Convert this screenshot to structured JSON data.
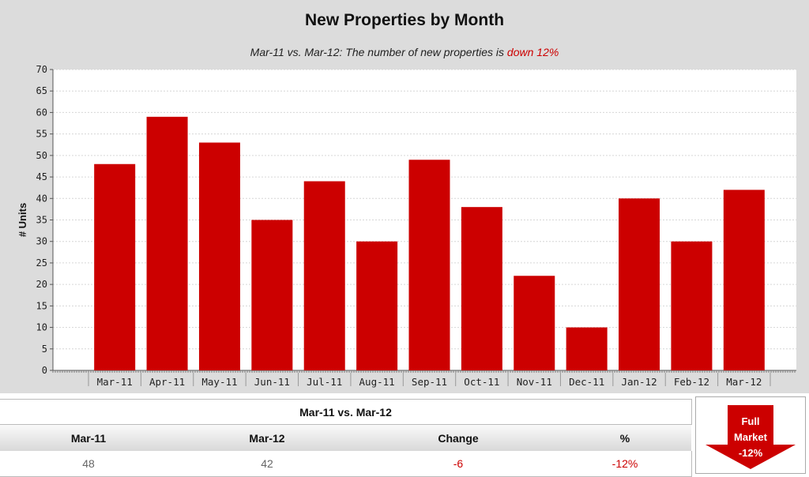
{
  "chart_data": {
    "type": "bar",
    "title": "New Properties by Month",
    "subtitle": "Mar-11 vs. Mar-12: The number of new properties is",
    "subtitle_highlight": "down 12%",
    "ylabel": "# Units",
    "xlabel": "",
    "ylim": [
      0,
      70
    ],
    "yticks": [
      0,
      5,
      10,
      15,
      20,
      25,
      30,
      35,
      40,
      45,
      50,
      55,
      60,
      65,
      70
    ],
    "grid": true,
    "bar_color": "#cc0000",
    "categories": [
      "Mar-11",
      "Apr-11",
      "May-11",
      "Jun-11",
      "Jul-11",
      "Aug-11",
      "Sep-11",
      "Oct-11",
      "Nov-11",
      "Dec-11",
      "Jan-12",
      "Feb-12",
      "Mar-12"
    ],
    "values": [
      48,
      59,
      53,
      35,
      44,
      30,
      49,
      38,
      22,
      10,
      40,
      30,
      42
    ]
  },
  "summary": {
    "caption": "Mar-11 vs. Mar-12",
    "headers": [
      "Mar-11",
      "Mar-12",
      "Change",
      "%"
    ],
    "values": [
      "48",
      "42",
      "-6",
      "-12%"
    ]
  },
  "badge": {
    "line1": "Full",
    "line2": "Market",
    "line3": "-12%",
    "color": "#cc0000"
  }
}
